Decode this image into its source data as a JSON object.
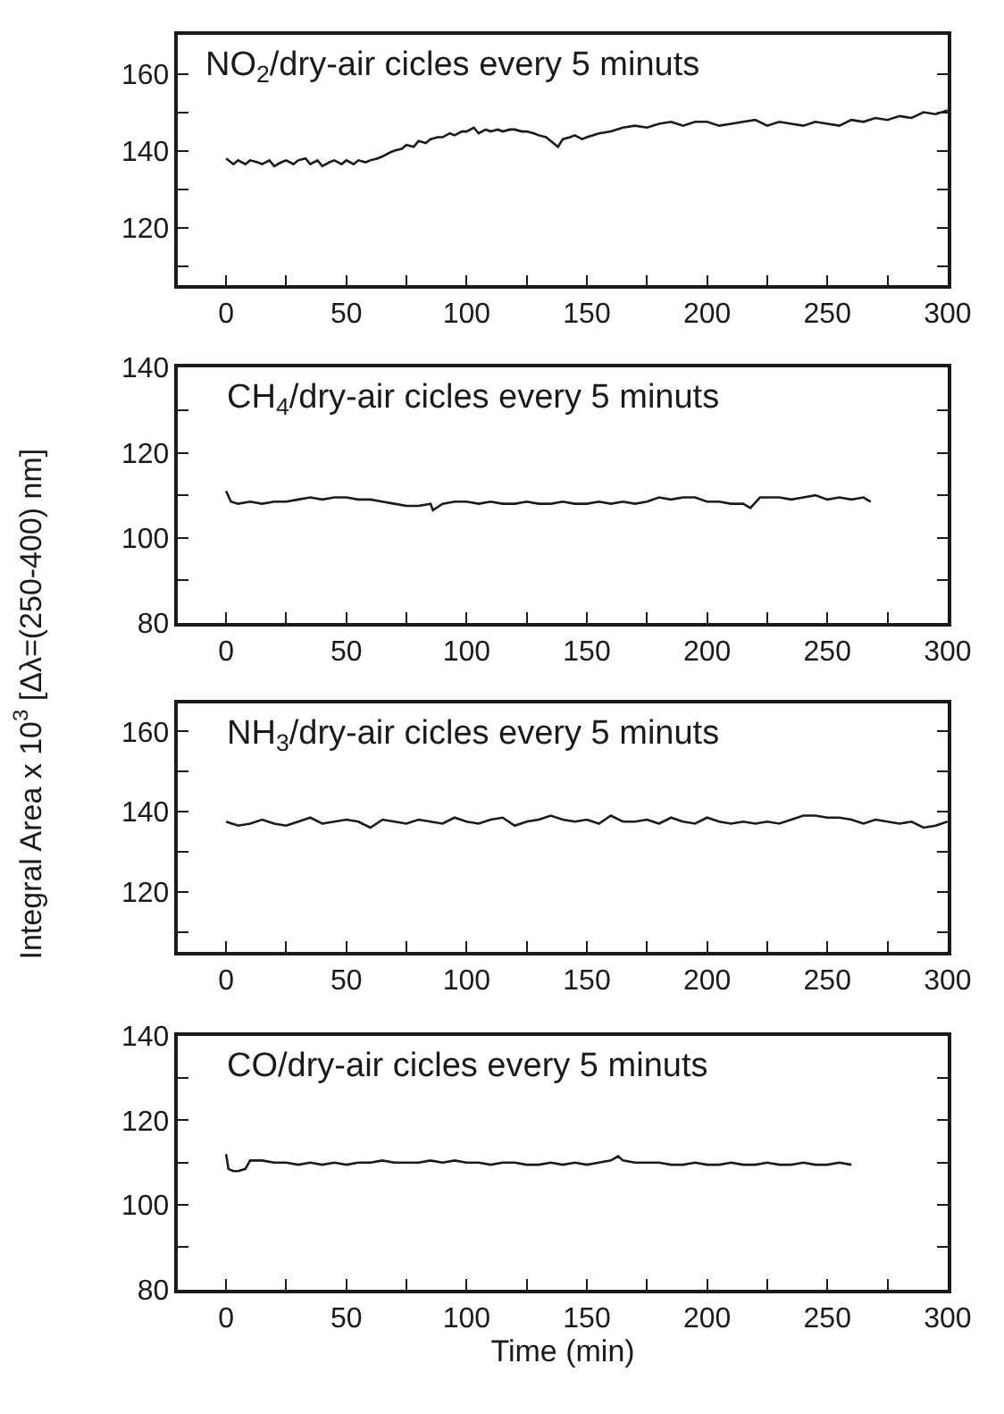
{
  "chart_data": [
    {
      "type": "line",
      "color": "#1a1a1a",
      "ylabel": "Integral Area x 10$^{3}$ [Δλ=(250-400) nm]",
      "annotations": [
        "NO$_{2}$/dry-air cicles every 5 minuts"
      ],
      "x": [
        0,
        3,
        5,
        8,
        10,
        13,
        15,
        18,
        20,
        23,
        25,
        28,
        30,
        33,
        35,
        38,
        40,
        43,
        45,
        48,
        50,
        53,
        55,
        58,
        60,
        63,
        65,
        68,
        70,
        73,
        75,
        78,
        80,
        83,
        85,
        88,
        90,
        93,
        95,
        98,
        100,
        103,
        105,
        108,
        110,
        113,
        115,
        118,
        120,
        123,
        125,
        128,
        130,
        133,
        135,
        138,
        140,
        143,
        145,
        148,
        150,
        155,
        160,
        165,
        170,
        175,
        180,
        185,
        190,
        195,
        200,
        205,
        210,
        215,
        220,
        225,
        230,
        235,
        240,
        245,
        250,
        255,
        260,
        265,
        270,
        275,
        280,
        285,
        290,
        295,
        300
      ],
      "values": [
        138,
        136.5,
        137.5,
        136.5,
        137.5,
        137,
        136.5,
        137.5,
        136,
        137,
        137.5,
        136.5,
        137.5,
        138,
        136.5,
        137.5,
        136,
        137,
        137.5,
        136.5,
        137.5,
        136.5,
        137.5,
        137,
        137.5,
        138,
        138.5,
        139.5,
        140,
        140.5,
        141.5,
        141,
        142.5,
        142,
        143,
        143.5,
        143.5,
        144.5,
        144,
        145,
        145,
        146,
        144.5,
        145.5,
        145,
        145.5,
        145,
        145.5,
        145.5,
        145,
        145,
        144.5,
        144,
        143.5,
        142.5,
        141,
        143,
        143.5,
        144,
        143,
        143.5,
        144.5,
        145,
        146,
        146.5,
        146,
        147,
        147.5,
        146.5,
        147.5,
        147.5,
        146.5,
        147,
        147.5,
        148,
        146.5,
        147.5,
        147,
        146.5,
        147.5,
        147,
        146.5,
        148,
        147.5,
        148.5,
        148,
        149,
        148.5,
        150,
        149.5,
        150.5
      ],
      "xlim": [
        -20,
        300
      ],
      "ylim": [
        105,
        170
      ],
      "xticks": [
        0,
        {
          "value": 25,
          "label": null
        },
        50,
        {
          "value": 75,
          "label": null
        },
        100,
        {
          "value": 125,
          "label": null
        },
        150,
        {
          "value": 175,
          "label": null
        },
        200,
        {
          "value": 225,
          "label": null
        },
        250,
        {
          "value": 275,
          "label": null
        },
        300
      ],
      "yticks": [
        {
          "value": 110,
          "label": null
        },
        120,
        {
          "value": 130,
          "label": null
        },
        140,
        {
          "value": 150,
          "label": null
        },
        160
      ]
    },
    {
      "type": "line",
      "color": "#1a1a1a",
      "annotations": [
        "CH$_{4}$/dry-air cicles every 5 minuts"
      ],
      "x": [
        0,
        2,
        5,
        10,
        15,
        20,
        25,
        30,
        35,
        40,
        45,
        50,
        55,
        60,
        65,
        70,
        75,
        80,
        85,
        86,
        90,
        95,
        100,
        105,
        110,
        115,
        120,
        125,
        130,
        135,
        140,
        145,
        150,
        155,
        160,
        165,
        170,
        175,
        180,
        185,
        190,
        195,
        200,
        205,
        210,
        215,
        218,
        222,
        225,
        230,
        235,
        240,
        245,
        250,
        255,
        260,
        265,
        268
      ],
      "values": [
        111,
        108.5,
        108,
        108.5,
        108,
        108.5,
        108.5,
        109,
        109.5,
        109,
        109.5,
        109.5,
        109,
        109,
        108.5,
        108,
        107.5,
        107.5,
        108,
        106.5,
        108,
        108.5,
        108.5,
        108,
        108.5,
        108,
        108,
        108.5,
        108,
        108,
        108.5,
        108,
        108,
        108.5,
        108,
        108.5,
        108,
        108.5,
        109.5,
        109,
        109.5,
        109.5,
        108.5,
        108.5,
        108,
        108,
        107,
        109.5,
        109.5,
        109.5,
        109,
        109.5,
        110,
        109,
        109.5,
        109,
        109.5,
        108.5
      ],
      "xlim": [
        -20,
        300
      ],
      "ylim": [
        80,
        140
      ],
      "xticks": [
        0,
        {
          "value": 25,
          "label": null
        },
        50,
        {
          "value": 75,
          "label": null
        },
        100,
        {
          "value": 125,
          "label": null
        },
        150,
        {
          "value": 175,
          "label": null
        },
        200,
        {
          "value": 225,
          "label": null
        },
        250,
        {
          "value": 275,
          "label": null
        },
        300
      ],
      "yticks": [
        80,
        {
          "value": 90,
          "label": null
        },
        100,
        {
          "value": 110,
          "label": null
        },
        120,
        {
          "value": 130,
          "label": null
        },
        140
      ]
    },
    {
      "type": "line",
      "color": "#1a1a1a",
      "annotations": [
        "NH$_{3}$/dry-air cicles every 5 minuts"
      ],
      "x": [
        0,
        5,
        10,
        15,
        20,
        25,
        30,
        35,
        40,
        45,
        50,
        55,
        60,
        65,
        70,
        75,
        80,
        85,
        90,
        95,
        100,
        105,
        110,
        115,
        120,
        125,
        130,
        135,
        140,
        145,
        150,
        155,
        160,
        165,
        170,
        175,
        180,
        185,
        190,
        195,
        200,
        205,
        210,
        215,
        220,
        225,
        230,
        235,
        240,
        245,
        250,
        255,
        260,
        265,
        270,
        275,
        280,
        285,
        290,
        295,
        300
      ],
      "values": [
        137.5,
        136.5,
        137,
        138,
        137,
        136.5,
        137.5,
        138.5,
        137,
        137.5,
        138,
        137.5,
        136,
        138,
        137.5,
        137,
        138,
        137.5,
        137,
        138.5,
        137.5,
        137,
        138,
        138.5,
        136.5,
        137.5,
        138,
        139,
        138,
        137.5,
        138,
        137,
        139,
        137.5,
        137.5,
        138,
        137,
        138.5,
        137.5,
        137,
        138.5,
        137.5,
        137,
        137.5,
        137,
        137.5,
        137,
        138,
        139,
        139,
        138.5,
        138.5,
        138,
        137,
        138,
        137.5,
        137,
        137.5,
        136,
        136.5,
        137.5
      ],
      "xlim": [
        -20,
        300
      ],
      "ylim": [
        105,
        167
      ],
      "xticks": [
        0,
        {
          "value": 25,
          "label": null
        },
        50,
        {
          "value": 75,
          "label": null
        },
        100,
        {
          "value": 125,
          "label": null
        },
        150,
        {
          "value": 175,
          "label": null
        },
        200,
        {
          "value": 225,
          "label": null
        },
        250,
        {
          "value": 275,
          "label": null
        },
        300
      ],
      "yticks": [
        {
          "value": 110,
          "label": null
        },
        120,
        {
          "value": 130,
          "label": null
        },
        140,
        {
          "value": 150,
          "label": null
        },
        160
      ]
    },
    {
      "type": "line",
      "color": "#1a1a1a",
      "xlabel": "Time (min)",
      "annotations": [
        "CO/dry-air cicles every 5 minuts"
      ],
      "x": [
        0,
        1,
        3,
        5,
        8,
        10,
        15,
        20,
        25,
        30,
        35,
        40,
        45,
        50,
        55,
        60,
        65,
        70,
        75,
        80,
        85,
        90,
        95,
        100,
        105,
        110,
        115,
        120,
        125,
        130,
        135,
        140,
        145,
        150,
        155,
        160,
        163,
        165,
        170,
        175,
        180,
        185,
        190,
        195,
        200,
        205,
        210,
        215,
        220,
        225,
        230,
        235,
        240,
        245,
        250,
        255,
        260
      ],
      "values": [
        112,
        108.5,
        108,
        108,
        108.5,
        110.5,
        110.5,
        110,
        110,
        109.5,
        110,
        109.5,
        110,
        109.5,
        110,
        110,
        110.5,
        110,
        110,
        110,
        110.5,
        110,
        110.5,
        110,
        110,
        109.5,
        110,
        110,
        109.5,
        109.5,
        110,
        109.5,
        110,
        109.5,
        110,
        110.5,
        111.5,
        110.5,
        110,
        110,
        110,
        109.5,
        109.5,
        110,
        109.5,
        109.5,
        110,
        109.5,
        109.5,
        110,
        109.5,
        109.5,
        110,
        109.5,
        109.5,
        110,
        109.5
      ],
      "xlim": [
        -20,
        300
      ],
      "ylim": [
        80,
        140
      ],
      "xticks": [
        0,
        {
          "value": 25,
          "label": null
        },
        50,
        {
          "value": 75,
          "label": null
        },
        100,
        {
          "value": 125,
          "label": null
        },
        150,
        {
          "value": 175,
          "label": null
        },
        200,
        {
          "value": 225,
          "label": null
        },
        250,
        {
          "value": 275,
          "label": null
        },
        300
      ],
      "yticks": [
        80,
        {
          "value": 90,
          "label": null
        },
        100,
        {
          "value": 110,
          "label": null
        },
        120,
        {
          "value": 130,
          "label": null
        },
        140
      ]
    }
  ]
}
